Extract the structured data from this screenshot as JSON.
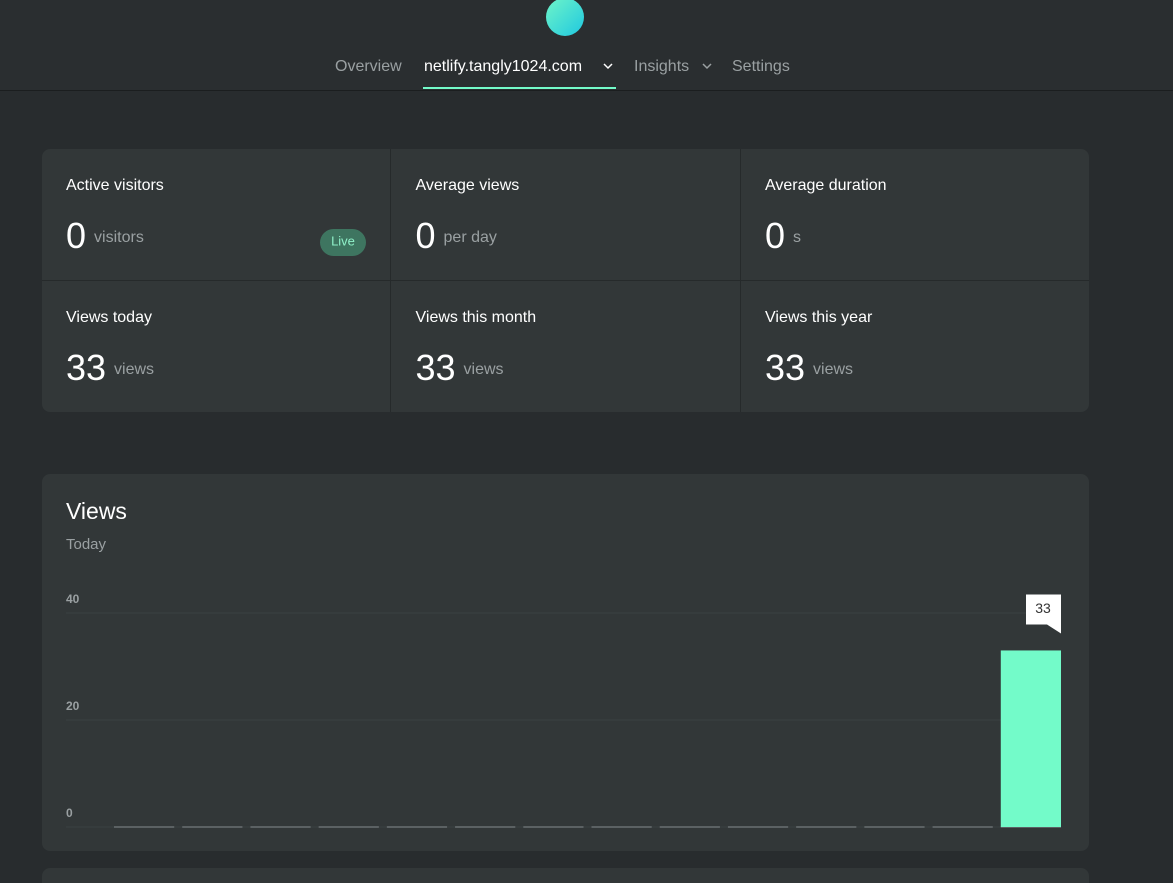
{
  "nav": {
    "items": [
      "Overview",
      "netlify.tangly1024.com",
      "Insights",
      "Settings"
    ]
  },
  "stats": [
    {
      "label": "Active visitors",
      "value": 0,
      "unit": "visitors",
      "badge": "Live"
    },
    {
      "label": "Average views",
      "value": 0,
      "unit": "per day"
    },
    {
      "label": "Average duration",
      "value": 0,
      "unit": "s"
    },
    {
      "label": "Views today",
      "value": 33,
      "unit": "views"
    },
    {
      "label": "Views this month",
      "value": 33,
      "unit": "views"
    },
    {
      "label": "Views this year",
      "value": 33,
      "unit": "views"
    }
  ],
  "chart_data": {
    "type": "bar",
    "title": "Views",
    "subtitle": "Today",
    "categories": [
      null,
      null,
      null,
      null,
      null,
      null,
      null,
      null,
      null,
      null,
      null,
      null,
      null,
      null
    ],
    "values": [
      0,
      0,
      0,
      0,
      0,
      0,
      0,
      0,
      0,
      0,
      0,
      0,
      0,
      33
    ],
    "color": "#73fbc9",
    "ylim": [
      0,
      40
    ],
    "yticks": [
      0,
      20,
      40
    ],
    "grid": true
  }
}
